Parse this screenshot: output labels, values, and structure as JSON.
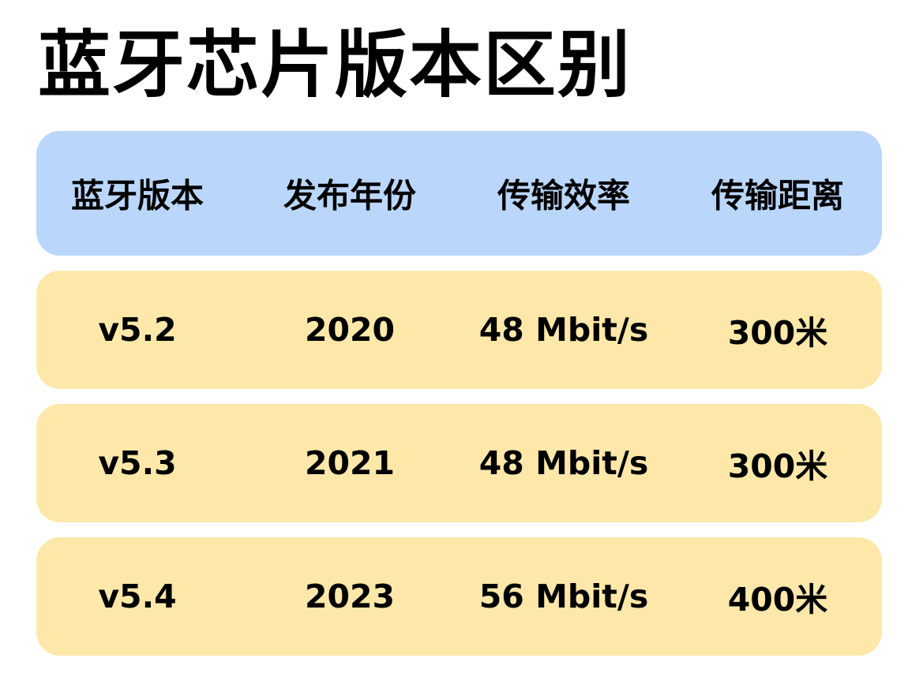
{
  "title": "蓝牙芯片版本区别",
  "table": {
    "headers": [
      "蓝牙版本",
      "发布年份",
      "传输效率",
      "传输距离"
    ],
    "rows": [
      [
        "v5.2",
        "2020",
        "48 Mbit/s",
        "300米"
      ],
      [
        "v5.3",
        "2021",
        "48 Mbit/s",
        "300米"
      ],
      [
        "v5.4",
        "2023",
        "56 Mbit/s",
        "400米"
      ]
    ]
  },
  "colors": {
    "header_background": "#bad7fb",
    "row_background": "#fde8aa",
    "text": "#000000"
  }
}
